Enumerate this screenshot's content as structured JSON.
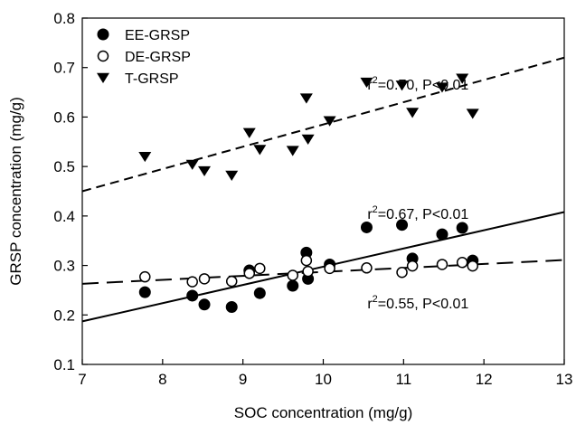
{
  "chart_data": {
    "type": "scatter",
    "xlabel": "SOC concentration (mg/g)",
    "ylabel": "GRSP concentration (mg/g)",
    "xlim": [
      7,
      13
    ],
    "ylim": [
      0.1,
      0.8
    ],
    "xticks": [
      7,
      8,
      9,
      10,
      11,
      12,
      13
    ],
    "yticks": [
      0.1,
      0.2,
      0.3,
      0.4,
      0.5,
      0.6,
      0.7,
      0.8
    ],
    "x_tick_labels": [
      "7",
      "8",
      "9",
      "10",
      "11",
      "12",
      "13"
    ],
    "y_tick_labels": [
      "0.1",
      "0.2",
      "0.3",
      "0.4",
      "0.5",
      "0.6",
      "0.7",
      "0.8"
    ],
    "grid": false,
    "legend_position": "top-left",
    "series": [
      {
        "name": "EE-GRSP",
        "marker": "filled-circle",
        "x": [
          7.78,
          8.37,
          8.52,
          8.86,
          9.08,
          9.21,
          9.62,
          9.79,
          9.81,
          10.08,
          10.54,
          10.98,
          11.11,
          11.48,
          11.73,
          11.86
        ],
        "y": [
          0.246,
          0.239,
          0.221,
          0.216,
          0.29,
          0.244,
          0.259,
          0.326,
          0.273,
          0.302,
          0.377,
          0.382,
          0.314,
          0.363,
          0.376,
          0.31
        ]
      },
      {
        "name": "DE-GRSP",
        "marker": "open-circle",
        "x": [
          7.78,
          8.37,
          8.52,
          8.86,
          9.08,
          9.21,
          9.62,
          9.79,
          9.81,
          10.08,
          10.54,
          10.98,
          11.11,
          11.48,
          11.73,
          11.86
        ],
        "y": [
          0.277,
          0.267,
          0.273,
          0.268,
          0.284,
          0.294,
          0.28,
          0.31,
          0.288,
          0.294,
          0.295,
          0.286,
          0.299,
          0.302,
          0.306,
          0.299
        ]
      },
      {
        "name": "T-GRSP",
        "marker": "filled-triangle-down",
        "x": [
          7.78,
          8.37,
          8.52,
          8.86,
          9.08,
          9.21,
          9.62,
          9.79,
          9.81,
          10.08,
          10.54,
          10.98,
          11.11,
          11.48,
          11.73,
          11.86
        ],
        "y": [
          0.52,
          0.504,
          0.491,
          0.482,
          0.568,
          0.534,
          0.532,
          0.638,
          0.555,
          0.592,
          0.67,
          0.664,
          0.609,
          0.66,
          0.678,
          0.607
        ]
      }
    ],
    "fits": [
      {
        "series": "T-GRSP",
        "style": "short-dash",
        "x": [
          7,
          13
        ],
        "y": [
          0.45,
          0.72
        ],
        "r2": "0.70",
        "p": "P<0.01"
      },
      {
        "series": "EE-GRSP",
        "style": "solid",
        "x": [
          7,
          13
        ],
        "y": [
          0.187,
          0.408
        ],
        "r2": "0.67",
        "p": "P<0.01"
      },
      {
        "series": "DE-GRSP",
        "style": "long-dash",
        "x": [
          7,
          13
        ],
        "y": [
          0.263,
          0.311
        ],
        "r2": "0.55",
        "p": "P<0.01"
      }
    ],
    "annotations": [
      {
        "r": "r",
        "sup": "2",
        "text": "=0.70, P<0.01",
        "x": 10.55,
        "y": 0.667
      },
      {
        "r": "r",
        "sup": "2",
        "text": "=0.67, P<0.01",
        "x": 10.55,
        "y": 0.405
      },
      {
        "r": "r",
        "sup": "2",
        "text": "=0.55, P<0.01",
        "x": 10.55,
        "y": 0.224
      }
    ],
    "colors": {
      "marker": "#000000",
      "axis": "#000000",
      "background": "#ffffff"
    }
  }
}
